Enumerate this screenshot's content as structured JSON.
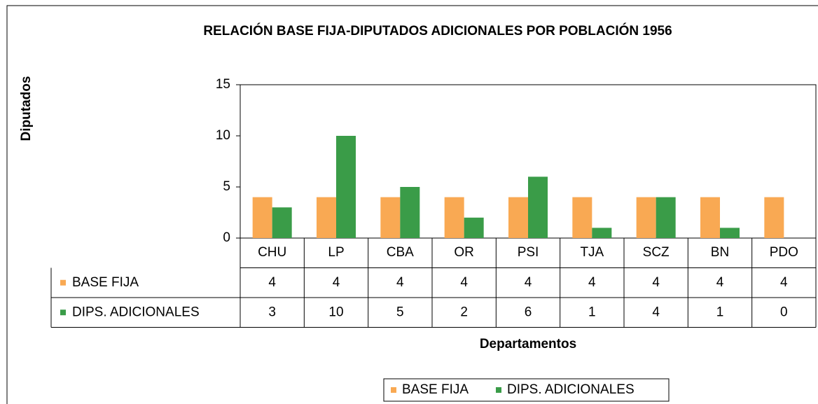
{
  "chart_data": {
    "type": "bar",
    "title": "RELACIÓN BASE FIJA-DIPUTADOS ADICIONALES POR POBLACIÓN 1956",
    "y_label": "Diputados",
    "x_label": "Departamentos",
    "categories": [
      "CHU",
      "LP",
      "CBA",
      "OR",
      "PSI",
      "TJA",
      "SCZ",
      "BN",
      "PDO"
    ],
    "series": [
      {
        "name": "BASE FIJA",
        "color": "#f9a953",
        "values": [
          4,
          4,
          4,
          4,
          4,
          4,
          4,
          4,
          4
        ]
      },
      {
        "name": "DIPS. ADICIONALES",
        "color": "#3a9c48",
        "values": [
          3,
          10,
          5,
          2,
          6,
          1,
          4,
          1,
          0
        ]
      }
    ],
    "ylim": [
      0,
      15
    ],
    "yticks": [
      0,
      5,
      10,
      15
    ],
    "grid": false,
    "legend": "bottom"
  }
}
